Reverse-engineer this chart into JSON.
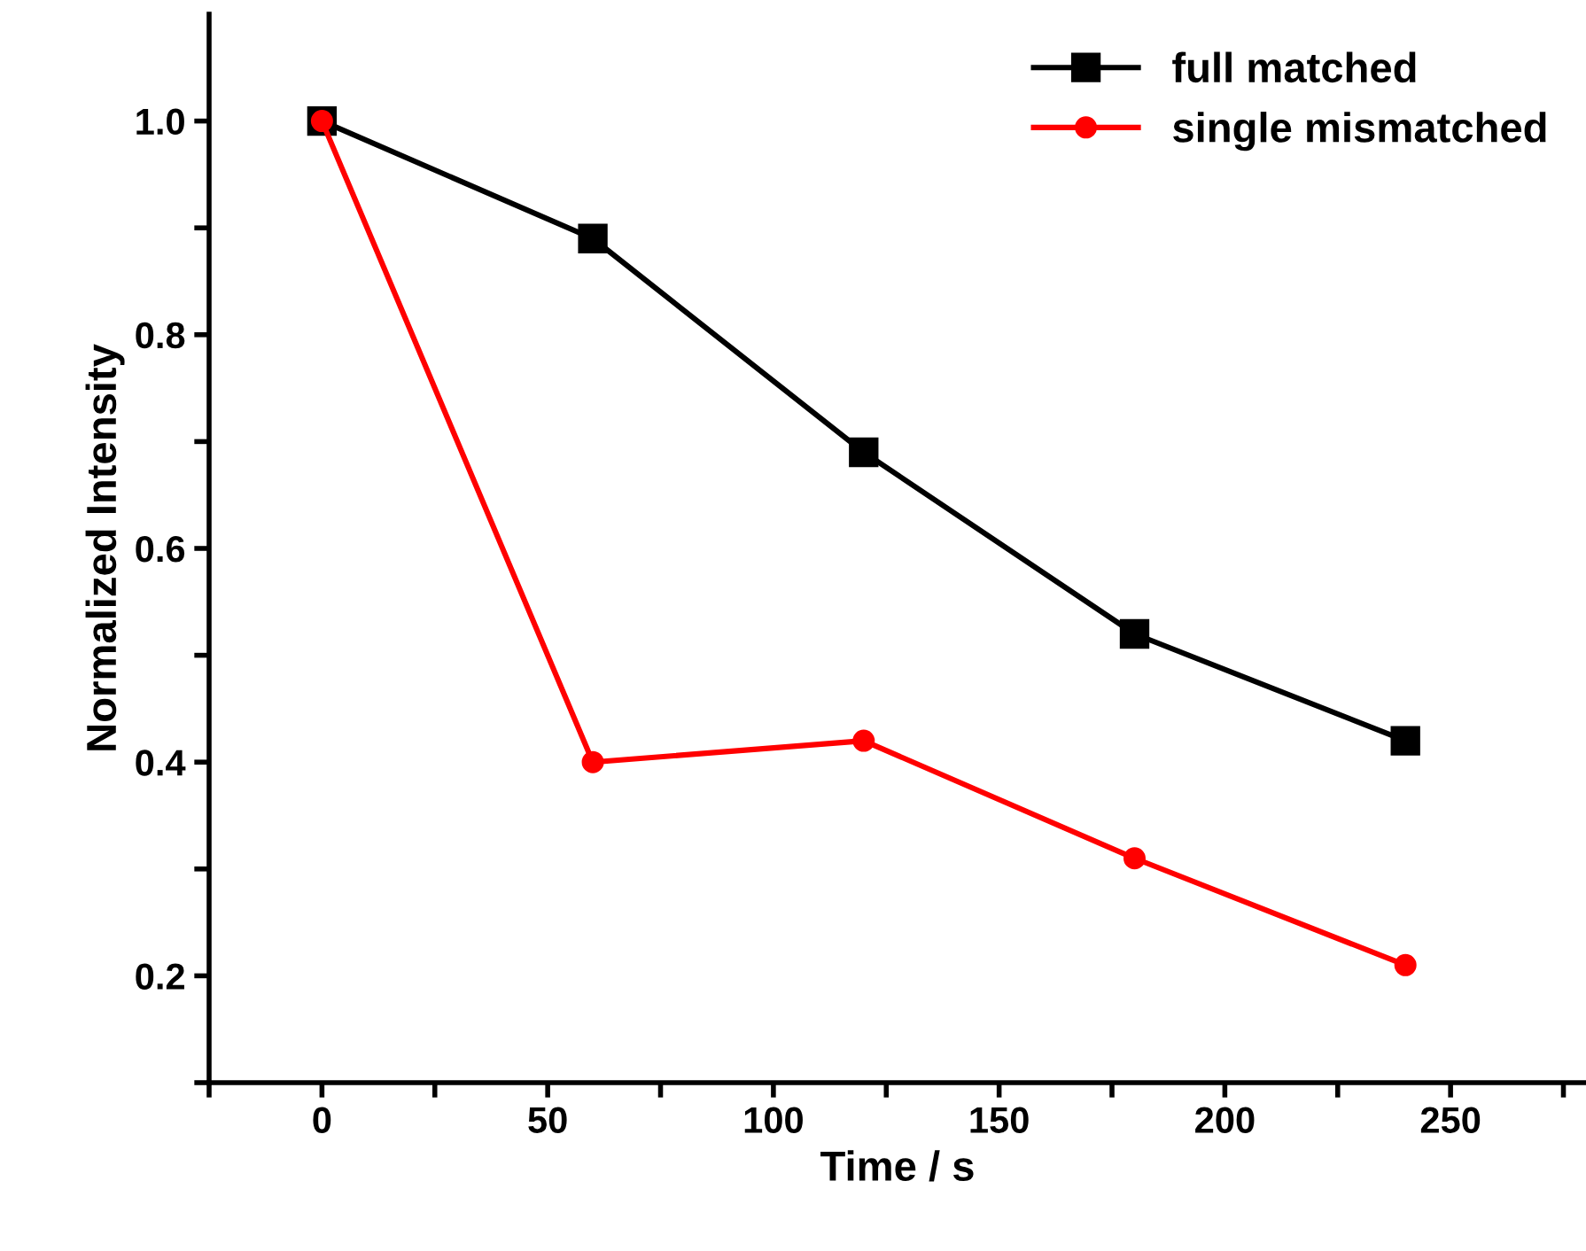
{
  "chart_data": {
    "type": "line",
    "xlabel": "Time / s",
    "ylabel": "Normalized Intensity",
    "x": [
      0,
      60,
      120,
      180,
      240
    ],
    "series": [
      {
        "name": "full matched",
        "color": "#000000",
        "marker": "square",
        "values": [
          1.0,
          0.89,
          0.69,
          0.52,
          0.42
        ]
      },
      {
        "name": "single mismatched",
        "color": "#ff0000",
        "marker": "circle",
        "values": [
          1.0,
          0.4,
          0.42,
          0.31,
          0.21
        ]
      }
    ],
    "xlim": [
      -25,
      280
    ],
    "xticks": [
      {
        "value": -25,
        "label": null
      },
      0,
      {
        "value": 25,
        "label": null
      },
      50,
      {
        "value": 75,
        "label": null
      },
      100,
      {
        "value": 125,
        "label": null
      },
      150,
      {
        "value": 175,
        "label": null
      },
      200,
      {
        "value": 225,
        "label": null
      },
      250,
      {
        "value": 275,
        "label": null
      }
    ],
    "ylim": [
      0.1,
      1.1
    ],
    "yticks": [
      {
        "value": 0.1,
        "label": null
      },
      0.2,
      {
        "value": 0.3,
        "label": null
      },
      0.4,
      {
        "value": 0.5,
        "label": null
      },
      0.6,
      {
        "value": 0.7,
        "label": null
      },
      0.8,
      {
        "value": 0.9,
        "label": null
      },
      {
        "value": 1.0,
        "label": "1.0"
      }
    ],
    "grid": false,
    "legend": "top right",
    "line_style": "solid"
  }
}
